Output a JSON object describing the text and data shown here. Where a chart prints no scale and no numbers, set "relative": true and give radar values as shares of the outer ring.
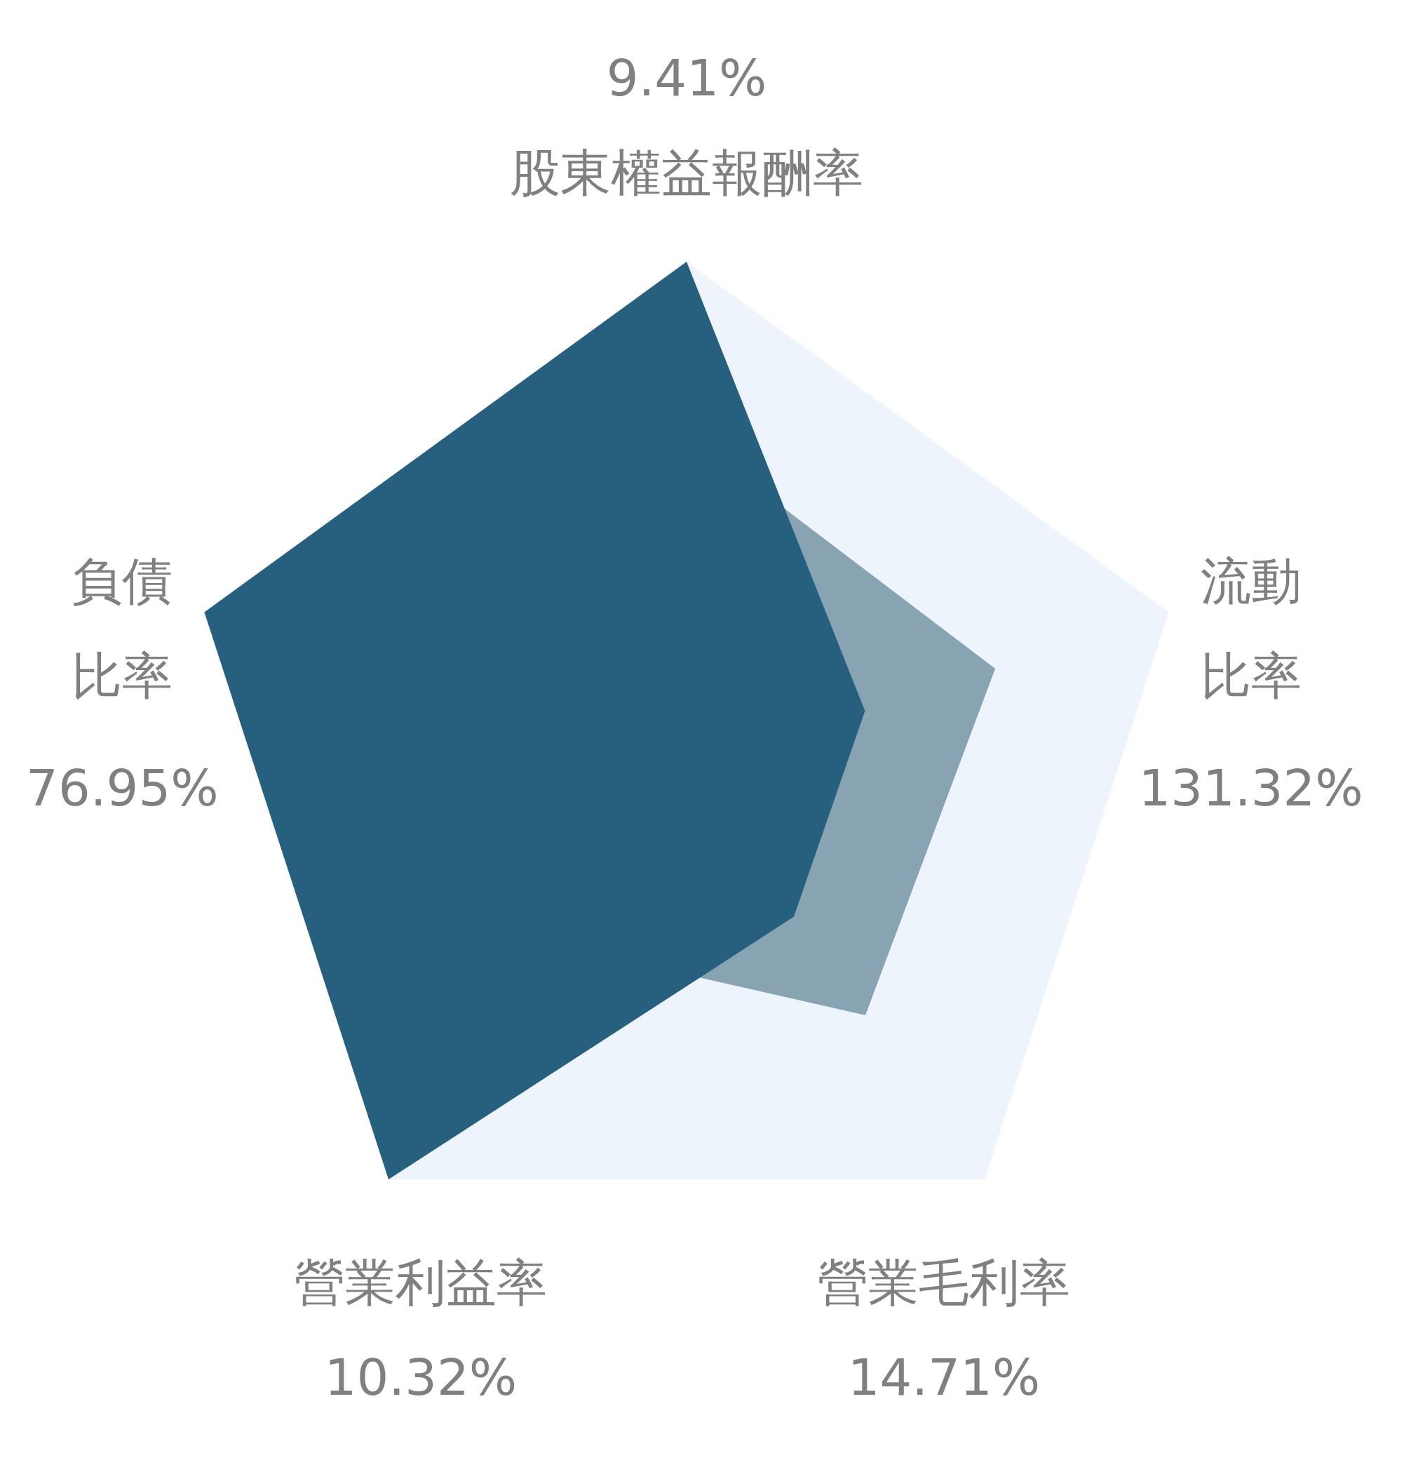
{
  "chart_data": {
    "type": "radar",
    "relative": true,
    "categories": [
      "股東權益報酬率",
      "流動比率",
      "營業毛利率",
      "營業利益率",
      "負債比率"
    ],
    "series": [
      {
        "color": "#27607e",
        "values": [
          1,
          0.37,
          0.36,
          1,
          1
        ]
      },
      {
        "color": "#88a4b2",
        "values": [
          0.66,
          0.64,
          0.6,
          0.43,
          null
        ]
      }
    ],
    "annotations": [
      "9.41%",
      "131.32%",
      "14.71%",
      "10.32%",
      "76.95%"
    ]
  }
}
